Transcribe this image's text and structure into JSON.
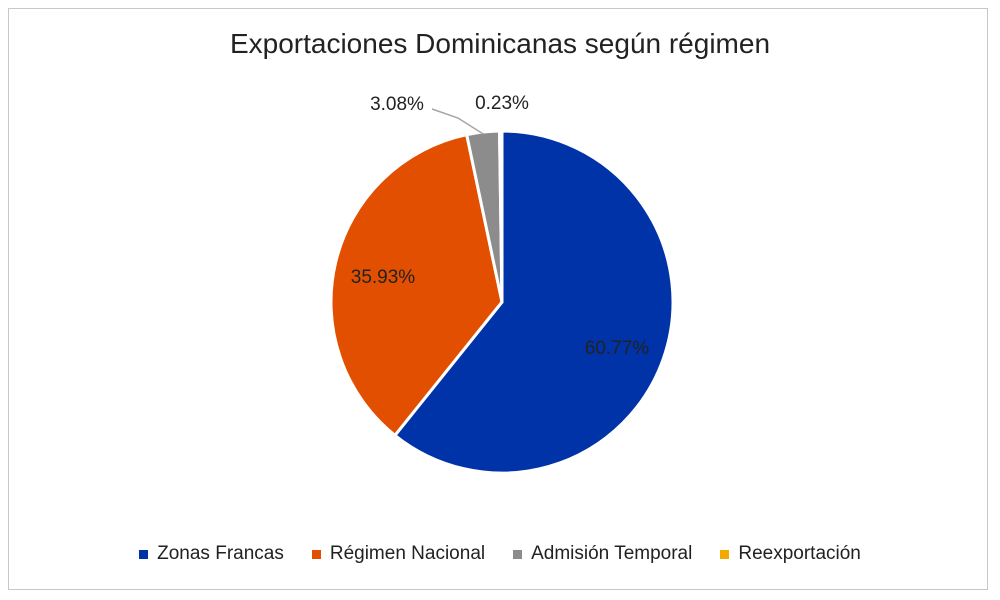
{
  "chart_data": {
    "type": "pie",
    "title": "Exportaciones Dominicanas según régimen",
    "categories": [
      "Zonas Francas",
      "Régimen Nacional",
      "Admisión Temporal",
      "Reexportación"
    ],
    "values": [
      60.77,
      35.93,
      3.08,
      0.23
    ],
    "data_labels": [
      "60.77%",
      "35.93%",
      "3.08%",
      "0.23%"
    ],
    "colors": [
      "#0033a8",
      "#e24f00",
      "#8c8c8c",
      "#f2a900"
    ],
    "legend_position": "bottom"
  }
}
